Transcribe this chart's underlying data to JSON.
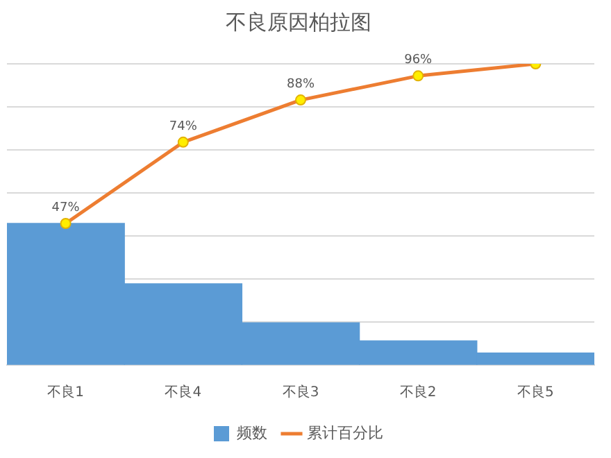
{
  "chart_data": {
    "type": "bar",
    "title": "不良原因柏拉图",
    "categories": [
      "不良1",
      "不良4",
      "不良3",
      "不良2",
      "不良5"
    ],
    "grid": "y",
    "legend": "bottom",
    "tick_labels": "x",
    "series": [
      {
        "name": "频数",
        "color": "#5b9bd5",
        "values": [
          47,
          27,
          14,
          8,
          4
        ]
      },
      {
        "name": "累计百分比",
        "type": "line",
        "color": "#ed7d31",
        "marker": "circle",
        "values": [
          47,
          74,
          88,
          96,
          100
        ],
        "value_labels": [
          "47%",
          "74%",
          "88%",
          "96%",
          null
        ]
      }
    ]
  }
}
